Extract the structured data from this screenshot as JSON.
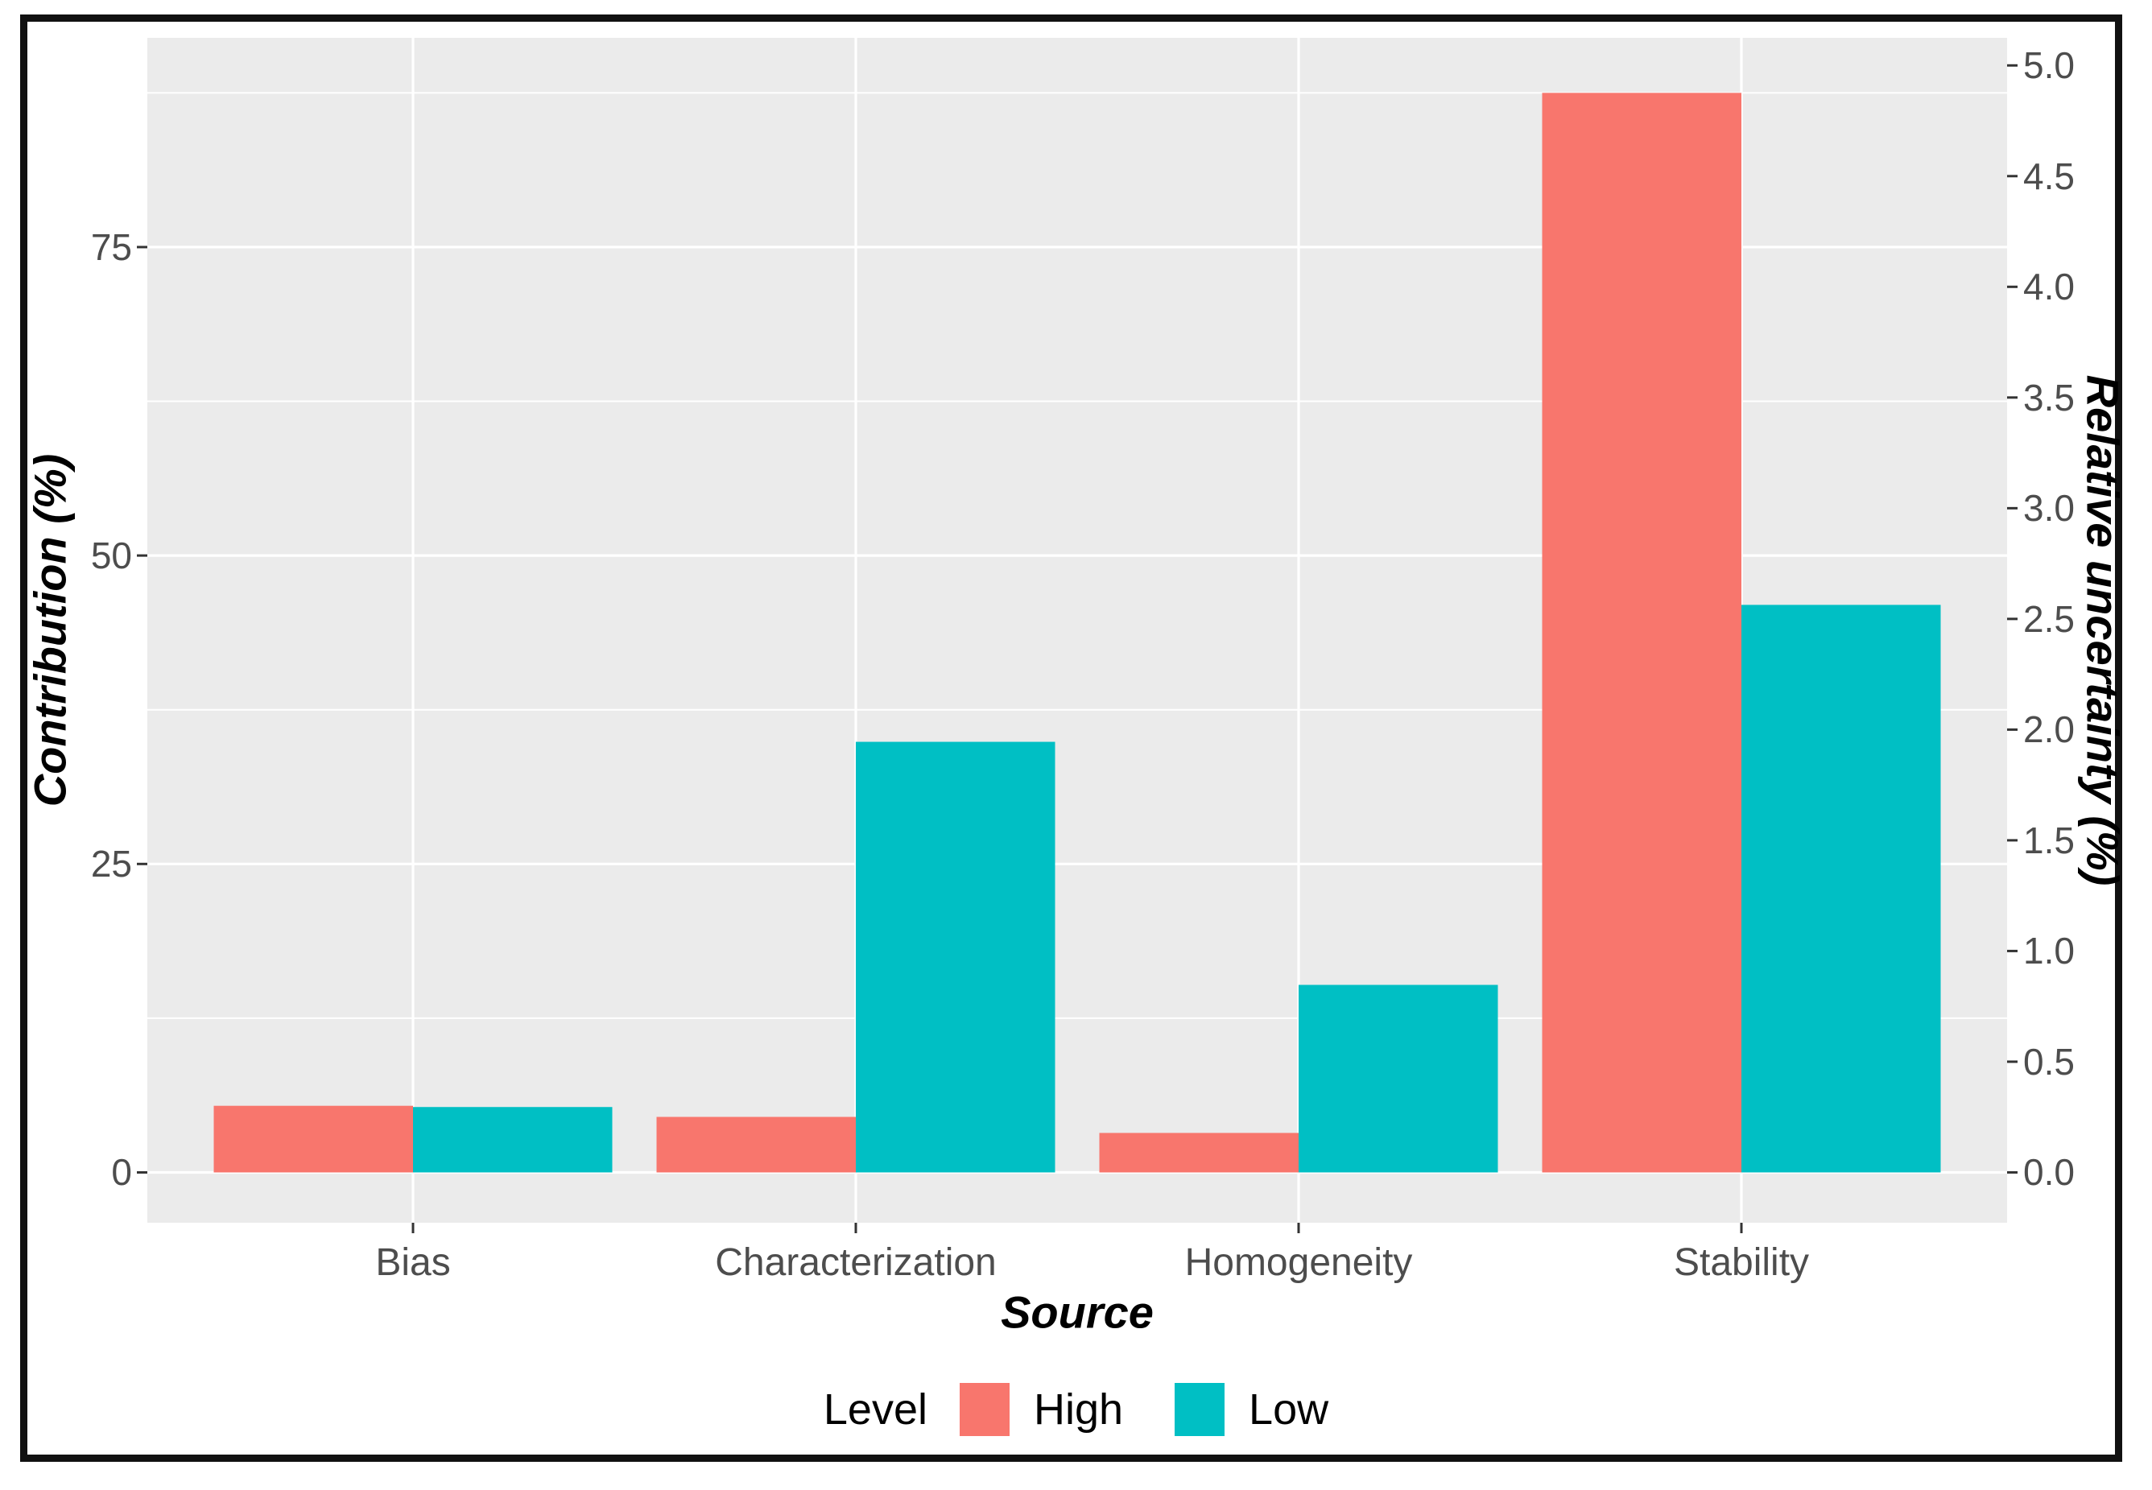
{
  "figure": {
    "background_color": "#ffffff",
    "border_color": "#111111"
  },
  "chart_data": {
    "type": "bar",
    "title": "",
    "categories": [
      "Bias",
      "Characterization",
      "Homogeneity",
      "Stability"
    ],
    "series": [
      {
        "name": "High",
        "color": "#F8766D",
        "contribution_pct": [
          5.4,
          4.5,
          3.2,
          87.5
        ],
        "relative_uncertainty_pct": [
          0.3,
          0.25,
          0.18,
          4.88
        ]
      },
      {
        "name": "Low",
        "color": "#00BFC4",
        "contribution_pct": [
          5.3,
          34.9,
          15.2,
          46.0
        ],
        "relative_uncertainty_pct": [
          0.29,
          1.94,
          0.85,
          2.56
        ]
      }
    ],
    "x_axis": {
      "label": "Source"
    },
    "y_left_axis": {
      "label": "Contribution (%)",
      "tick_labels": [
        "0",
        "25",
        "50",
        "75"
      ],
      "tick_values": [
        0,
        25,
        50,
        75
      ],
      "minor_tick_values": [
        12.5,
        37.5,
        62.5,
        87.5
      ],
      "range": [
        -4.08,
        91.96
      ]
    },
    "y_right_axis": {
      "label": "Relative uncertainty (%)",
      "tick_labels": [
        "0.0",
        "0.5",
        "1.0",
        "1.5",
        "2.0",
        "2.5",
        "3.0",
        "3.5",
        "4.0",
        "4.5",
        "5.0"
      ],
      "tick_values": [
        0,
        0.5,
        1,
        1.5,
        2,
        2.5,
        3,
        3.5,
        4,
        4.5,
        5
      ],
      "range": [
        -0.2274,
        5.1246
      ]
    },
    "legend": {
      "title": "Level",
      "position": "bottom",
      "entries": [
        {
          "label": "High",
          "color": "#F8766D"
        },
        {
          "label": "Low",
          "color": "#00BFC4"
        }
      ]
    },
    "style": {
      "panel_background": "#EBEBEB",
      "grid_color": "#FFFFFF",
      "tick_mark_color": "#333333",
      "tick_text_color": "#4d4d4d"
    },
    "grid": "major-and-minor-horizontal, major-vertical",
    "legend_position": "bottom"
  }
}
